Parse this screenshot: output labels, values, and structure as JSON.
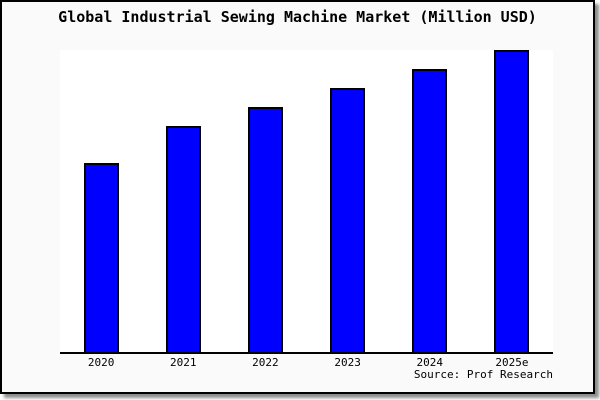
{
  "title": "Global Industrial Sewing Machine Market (Million USD)",
  "source_credit": "Source: Prof Research",
  "chart_data": {
    "type": "bar",
    "title": "Global Industrial Sewing Machine Market (Million USD)",
    "categories": [
      "2020",
      "2021",
      "2022",
      "2023",
      "2024",
      "2025e"
    ],
    "values": [
      100,
      120,
      130,
      140,
      150,
      160
    ],
    "value_note": "y-axis is unlabeled; values are relative units estimated from bar heights (2020 = 100)",
    "xlabel": "",
    "ylabel": "",
    "ylim": [
      0,
      160
    ],
    "grid": false,
    "legend": false,
    "annotations": [
      "Source: Prof Research"
    ]
  },
  "colors": {
    "bar_fill": "#0000ff",
    "bar_border": "#000000",
    "plot_background": "#ffffff",
    "canvas_background": "#fafafa",
    "axis_line": "#000000",
    "frame_border": "#000000",
    "title_text": "#000000"
  }
}
